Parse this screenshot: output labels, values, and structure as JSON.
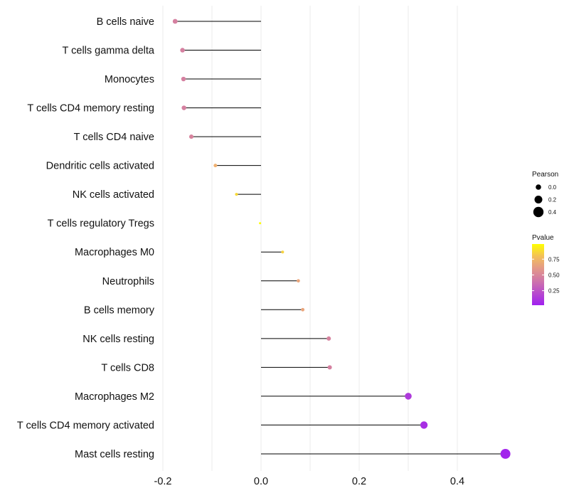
{
  "chart_data": {
    "type": "lollipop",
    "title": "",
    "xlabel": "",
    "ylabel": "",
    "xlim": [
      -0.2,
      0.5
    ],
    "x_ticks": [
      -0.2,
      0.0,
      0.2,
      0.4
    ],
    "x_tick_labels": [
      "-0.2",
      "0.0",
      "0.2",
      "0.4"
    ],
    "grid": true,
    "categories": [
      "B cells naive",
      "T cells gamma delta",
      "Monocytes",
      "T cells CD4 memory resting",
      "T cells CD4 naive",
      "Dendritic cells activated",
      "NK cells activated",
      "T cells regulatory  Tregs",
      "Macrophages M0",
      "Neutrophils",
      "B cells memory",
      "NK cells resting",
      "T cells CD8",
      "Macrophages M2",
      "T cells CD4 memory activated",
      "Mast cells resting"
    ],
    "pearson": [
      -0.175,
      -0.16,
      -0.158,
      -0.157,
      -0.142,
      -0.093,
      -0.05,
      -0.002,
      0.044,
      0.076,
      0.085,
      0.138,
      0.14,
      0.3,
      0.332,
      0.498
    ],
    "pvalue": [
      0.45,
      0.45,
      0.45,
      0.45,
      0.47,
      0.75,
      0.88,
      0.99,
      0.86,
      0.68,
      0.68,
      0.46,
      0.45,
      0.12,
      0.07,
      0.02
    ],
    "legend": {
      "position": "right",
      "size_title": "Pearson",
      "size_entries": [
        {
          "label": "0.0",
          "value": 0.0
        },
        {
          "label": "0.2",
          "value": 0.2
        },
        {
          "label": "0.4",
          "value": 0.4
        }
      ],
      "color_title": "Pvalue",
      "color_ticks": [
        {
          "label": "0.75",
          "value": 0.75
        },
        {
          "label": "0.50",
          "value": 0.5
        },
        {
          "label": "0.25",
          "value": 0.25
        }
      ],
      "color_range": [
        0.02,
        0.99
      ]
    },
    "colors": {
      "low": "#a020f0",
      "mid": "#d580a0",
      "high_mid": "#f0b070",
      "high": "#ffff00",
      "segment": "#000000",
      "grid": "#ebebeb"
    }
  }
}
